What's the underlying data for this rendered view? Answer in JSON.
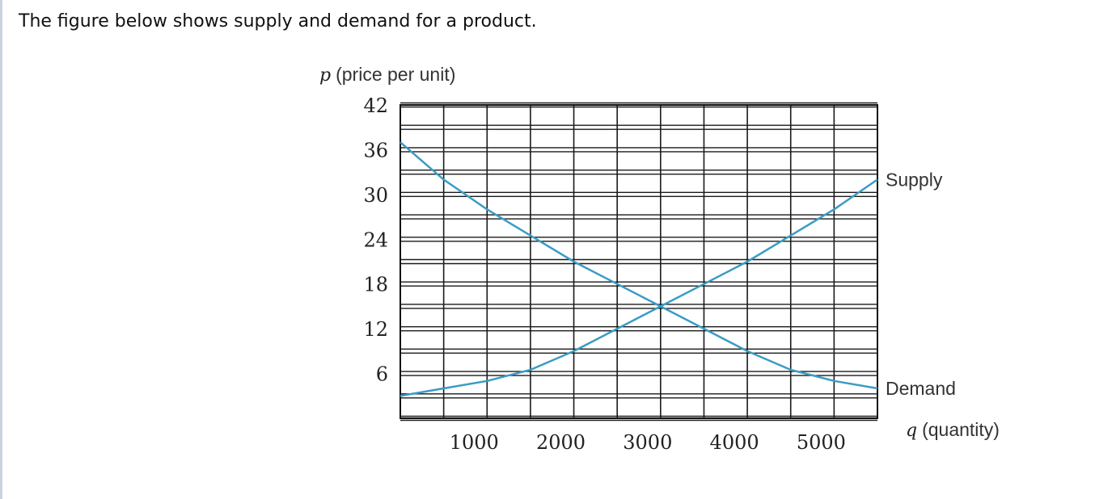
{
  "intro": "The figure below shows supply and demand for a product.",
  "chart_data": {
    "type": "line",
    "ylabel_var": "p",
    "ylabel": "(price per unit)",
    "xlabel_var": "q",
    "xlabel": "(quantity)",
    "xlim": [
      0,
      5500
    ],
    "ylim": [
      0,
      42
    ],
    "grid": true,
    "x_ticks": [
      1000,
      2000,
      3000,
      4000,
      5000
    ],
    "y_ticks": [
      6,
      12,
      18,
      24,
      30,
      36,
      42
    ],
    "line_color": "#3a9cc4",
    "series": [
      {
        "name": "Supply",
        "x": [
          0,
          500,
          1000,
          1500,
          2000,
          2500,
          3000,
          3500,
          4000,
          4500,
          5000,
          5500
        ],
        "y": [
          3,
          4,
          5,
          6.5,
          9,
          12,
          15,
          18,
          21,
          24.5,
          28,
          32
        ]
      },
      {
        "name": "Demand",
        "x": [
          0,
          500,
          1000,
          1500,
          2000,
          2500,
          3000,
          3500,
          4000,
          4500,
          5000,
          5500
        ],
        "y": [
          37,
          32,
          28,
          24.5,
          21,
          18,
          15,
          12,
          9,
          6.5,
          5,
          4
        ]
      }
    ]
  }
}
